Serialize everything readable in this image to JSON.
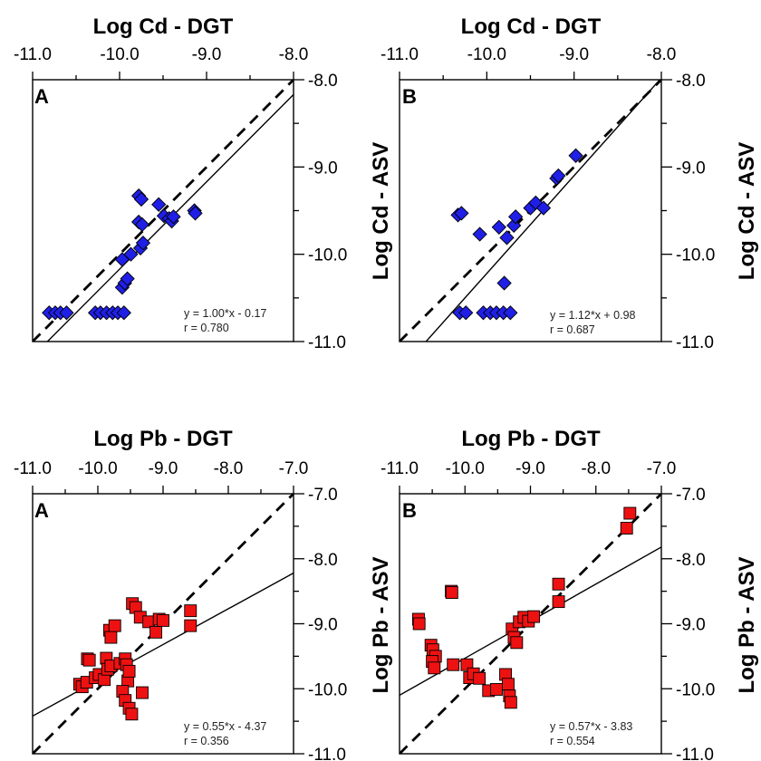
{
  "colors": {
    "cd_marker": "#1f1fe6",
    "pb_marker": "#ee1111",
    "outline": "#000000"
  },
  "chart_data": [
    {
      "type": "scatter",
      "panel_label": "A",
      "xlabel": "Log Cd - DGT",
      "ylabel": "",
      "xlim": [
        -11.0,
        -8.0
      ],
      "ylim": [
        -11.0,
        -8.0
      ],
      "xticks": [
        "-11.0",
        "-10.0",
        "-9.0",
        "-8.0"
      ],
      "yticks": [
        "-8.0",
        "-9.0",
        "-10.0",
        "-11.0"
      ],
      "marker": "diamond",
      "equation": "y = 1.00*x - 0.17",
      "r_label": "r = 0.780",
      "fit": {
        "slope": 1.0,
        "intercept": -0.17
      },
      "one_to_one": true,
      "points": [
        [
          -10.81,
          -10.67
        ],
        [
          -10.74,
          -10.67
        ],
        [
          -10.68,
          -10.67
        ],
        [
          -10.61,
          -10.67
        ],
        [
          -10.28,
          -10.67
        ],
        [
          -10.22,
          -10.67
        ],
        [
          -10.15,
          -10.67
        ],
        [
          -10.08,
          -10.67
        ],
        [
          -10.02,
          -10.67
        ],
        [
          -9.95,
          -10.67
        ],
        [
          -9.97,
          -10.38
        ],
        [
          -9.94,
          -10.33
        ],
        [
          -9.91,
          -10.28
        ],
        [
          -9.97,
          -10.06
        ],
        [
          -9.87,
          -10.0
        ],
        [
          -9.76,
          -9.93
        ],
        [
          -9.73,
          -9.87
        ],
        [
          -9.78,
          -9.63
        ],
        [
          -9.74,
          -9.66
        ],
        [
          -9.78,
          -9.33
        ],
        [
          -9.75,
          -9.37
        ],
        [
          -9.55,
          -9.43
        ],
        [
          -9.49,
          -9.56
        ],
        [
          -9.43,
          -9.59
        ],
        [
          -9.4,
          -9.62
        ],
        [
          -9.38,
          -9.57
        ],
        [
          -9.14,
          -9.5
        ],
        [
          -9.13,
          -9.53
        ]
      ]
    },
    {
      "type": "scatter",
      "panel_label": "B",
      "xlabel": "Log Cd - DGT",
      "ylabel": "Log Cd - ASV",
      "xlim": [
        -11.0,
        -8.0
      ],
      "ylim": [
        -11.0,
        -8.0
      ],
      "xticks": [
        "-11.0",
        "-10.0",
        "-9.0",
        "-8.0"
      ],
      "yticks": [
        "-8.0",
        "-9.0",
        "-10.0",
        "-11.0"
      ],
      "marker": "diamond",
      "equation": "y = 1.12*x + 0.98",
      "r_label": "r = 0.687",
      "fit": {
        "slope": 1.12,
        "intercept": 0.98
      },
      "one_to_one": true,
      "points": [
        [
          -10.33,
          -9.55
        ],
        [
          -10.29,
          -9.53
        ],
        [
          -10.08,
          -9.77
        ],
        [
          -10.31,
          -10.67
        ],
        [
          -10.24,
          -10.67
        ],
        [
          -10.04,
          -10.67
        ],
        [
          -9.96,
          -10.67
        ],
        [
          -9.89,
          -10.67
        ],
        [
          -9.81,
          -10.67
        ],
        [
          -9.73,
          -10.67
        ],
        [
          -9.8,
          -10.33
        ],
        [
          -9.86,
          -9.69
        ],
        [
          -9.77,
          -9.81
        ],
        [
          -9.69,
          -9.67
        ],
        [
          -9.67,
          -9.57
        ],
        [
          -9.5,
          -9.47
        ],
        [
          -9.44,
          -9.41
        ],
        [
          -9.35,
          -9.47
        ],
        [
          -9.2,
          -9.13
        ],
        [
          -9.18,
          -9.1
        ],
        [
          -8.98,
          -8.87
        ]
      ]
    },
    {
      "type": "scatter",
      "panel_label": "A",
      "xlabel": "Log Pb - DGT",
      "ylabel": "",
      "xlim": [
        -11.0,
        -7.0
      ],
      "ylim": [
        -11.0,
        -7.0
      ],
      "xticks": [
        "-11.0",
        "-10.0",
        "-9.0",
        "-8.0",
        "-7.0"
      ],
      "yticks": [
        "-7.0",
        "-8.0",
        "-9.0",
        "-10.0",
        "-11.0"
      ],
      "marker": "square",
      "equation": "y = 0.55*x - 4.37",
      "r_label": "r = 0.356",
      "fit": {
        "slope": 0.55,
        "intercept": -4.37
      },
      "one_to_one": true,
      "points": [
        [
          -10.16,
          -9.54
        ],
        [
          -10.13,
          -9.56
        ],
        [
          -9.87,
          -9.53
        ],
        [
          -10.28,
          -9.93
        ],
        [
          -10.24,
          -9.97
        ],
        [
          -10.17,
          -9.9
        ],
        [
          -10.04,
          -9.83
        ],
        [
          -9.98,
          -9.78
        ],
        [
          -9.9,
          -9.86
        ],
        [
          -9.85,
          -9.7
        ],
        [
          -9.8,
          -9.65
        ],
        [
          -9.66,
          -9.61
        ],
        [
          -9.58,
          -9.54
        ],
        [
          -9.82,
          -9.1
        ],
        [
          -9.8,
          -9.21
        ],
        [
          -9.74,
          -9.03
        ],
        [
          -9.56,
          -9.63
        ],
        [
          -9.54,
          -9.88
        ],
        [
          -9.52,
          -9.73
        ],
        [
          -9.62,
          -10.04
        ],
        [
          -9.58,
          -10.18
        ],
        [
          -9.52,
          -10.3
        ],
        [
          -9.48,
          -10.39
        ],
        [
          -9.32,
          -10.06
        ],
        [
          -9.47,
          -8.69
        ],
        [
          -9.42,
          -8.75
        ],
        [
          -9.35,
          -8.9
        ],
        [
          -9.22,
          -8.97
        ],
        [
          -9.11,
          -9.13
        ],
        [
          -9.06,
          -8.93
        ],
        [
          -9.0,
          -8.95
        ],
        [
          -8.58,
          -8.8
        ],
        [
          -8.58,
          -9.03
        ]
      ]
    },
    {
      "type": "scatter",
      "panel_label": "B",
      "xlabel": "Log Pb - DGT",
      "ylabel": "Log Pb - ASV",
      "xlim": [
        -11.0,
        -7.0
      ],
      "ylim": [
        -11.0,
        -7.0
      ],
      "xticks": [
        "-11.0",
        "-10.0",
        "-9.0",
        "-8.0",
        "-7.0"
      ],
      "yticks": [
        "-7.0",
        "-8.0",
        "-9.0",
        "-10.0",
        "-11.0"
      ],
      "marker": "square",
      "equation": "y = 0.57*x - 3.83",
      "r_label": "r = 0.554",
      "fit": {
        "slope": 0.57,
        "intercept": -3.83
      },
      "one_to_one": true,
      "points": [
        [
          -10.71,
          -8.93
        ],
        [
          -10.7,
          -9.0
        ],
        [
          -10.21,
          -8.5
        ],
        [
          -10.2,
          -8.52
        ],
        [
          -10.52,
          -9.33
        ],
        [
          -10.49,
          -9.4
        ],
        [
          -10.45,
          -9.5
        ],
        [
          -10.5,
          -9.58
        ],
        [
          -10.47,
          -9.68
        ],
        [
          -10.18,
          -9.63
        ],
        [
          -9.97,
          -9.63
        ],
        [
          -9.93,
          -9.83
        ],
        [
          -9.87,
          -9.77
        ],
        [
          -9.78,
          -9.84
        ],
        [
          -9.64,
          -10.03
        ],
        [
          -9.52,
          -10.01
        ],
        [
          -9.38,
          -9.78
        ],
        [
          -9.34,
          -9.93
        ],
        [
          -9.32,
          -10.11
        ],
        [
          -9.3,
          -10.21
        ],
        [
          -9.28,
          -9.08
        ],
        [
          -9.25,
          -9.21
        ],
        [
          -9.21,
          -9.29
        ],
        [
          -9.17,
          -8.97
        ],
        [
          -9.1,
          -8.9
        ],
        [
          -9.03,
          -8.96
        ],
        [
          -8.95,
          -8.89
        ],
        [
          -8.57,
          -8.39
        ],
        [
          -8.57,
          -8.66
        ],
        [
          -7.48,
          -7.3
        ],
        [
          -7.53,
          -7.53
        ]
      ]
    }
  ]
}
